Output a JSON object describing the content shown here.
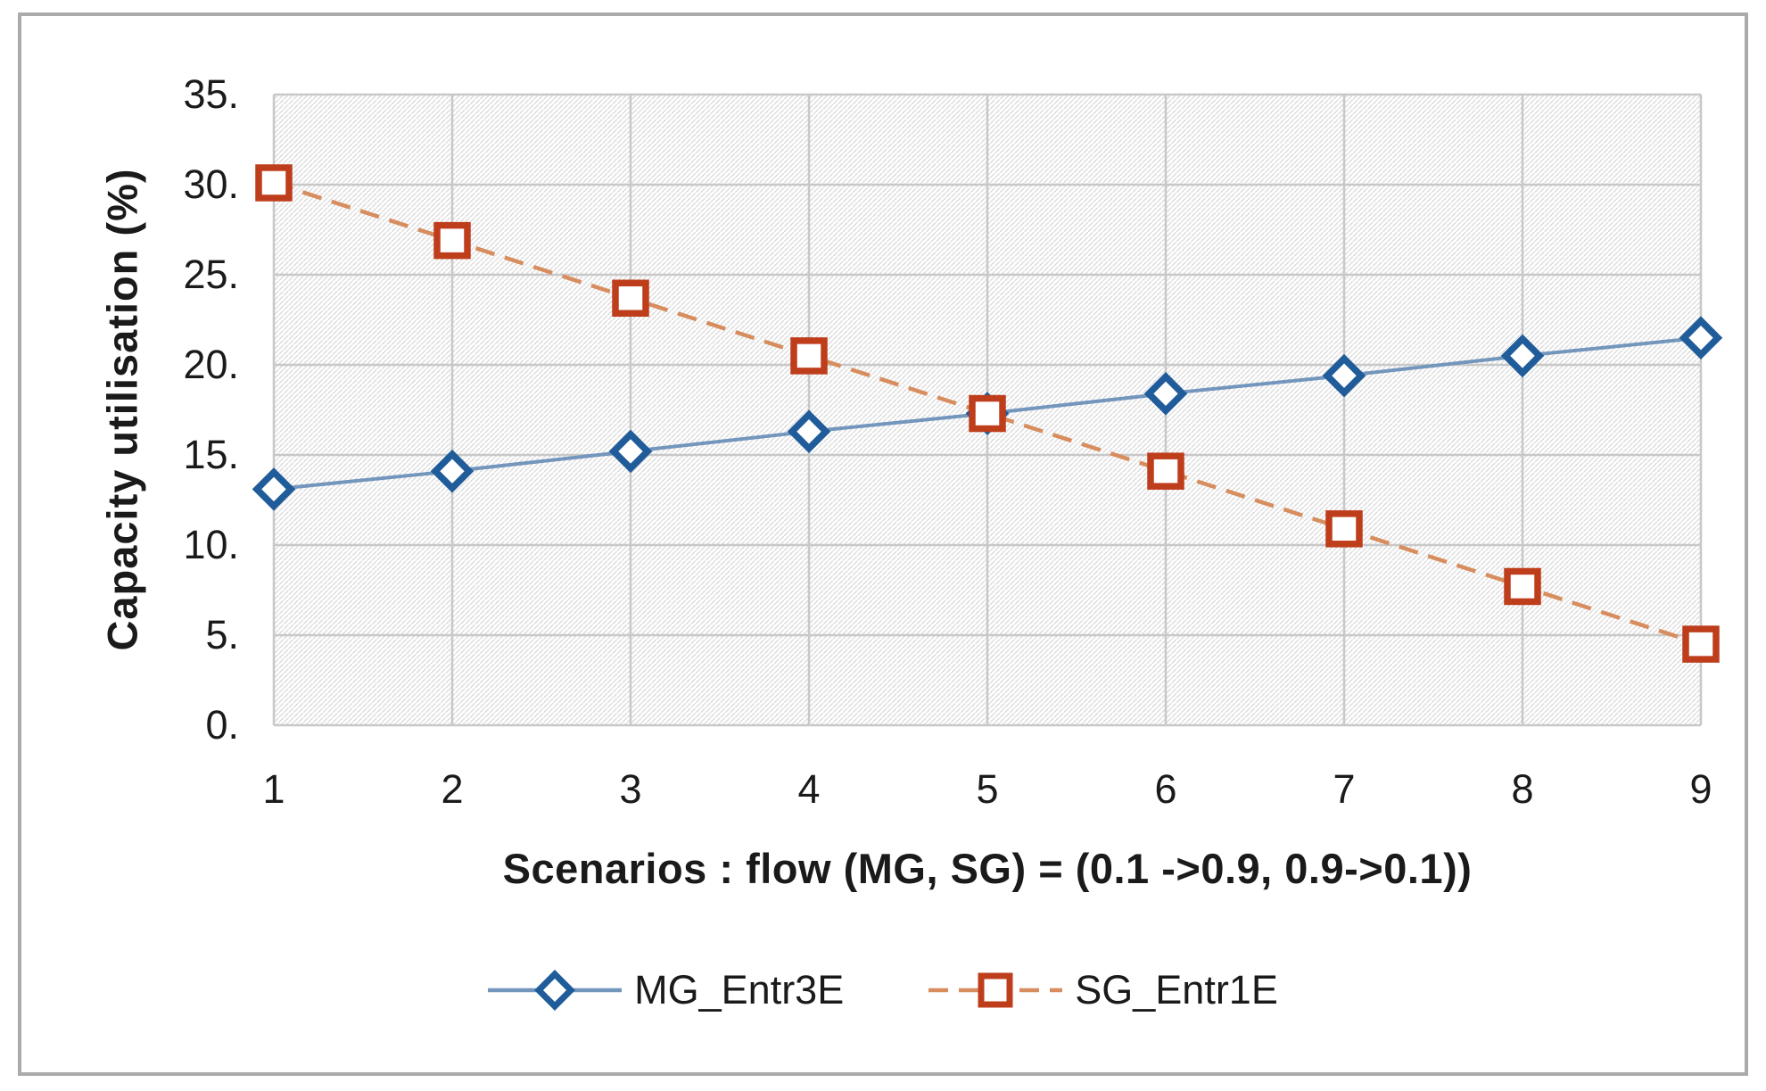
{
  "chart_data": {
    "type": "line",
    "title": "",
    "xlabel": "Scenarios : flow (MG, SG) = (0.1 ->0.9, 0.9->0.1))",
    "ylabel": "Capacity utilisation (%)",
    "x": [
      1,
      2,
      3,
      4,
      5,
      6,
      7,
      8,
      9
    ],
    "xtick_labels": [
      "1",
      "2",
      "3",
      "4",
      "5",
      "6",
      "7",
      "8",
      "9"
    ],
    "ylim": [
      0,
      35
    ],
    "ytick_step": 5,
    "ytick_labels": [
      "0.",
      "5.",
      "10.",
      "15.",
      "20.",
      "25.",
      "30.",
      "35."
    ],
    "grid": true,
    "plot_background": "diagonal-hatch",
    "legend_position": "bottom",
    "series": [
      {
        "name": "MG_Entr3E",
        "marker": "diamond",
        "marker_color": "#1f5c99",
        "line_color": "#7396bc",
        "line_style": "solid",
        "values": [
          13.1,
          14.1,
          15.2,
          16.3,
          17.3,
          18.4,
          19.4,
          20.5,
          21.5
        ]
      },
      {
        "name": "SG_Entr1E",
        "marker": "square",
        "marker_color": "#be3d1b",
        "line_color": "#d78d5e",
        "line_style": "dashed",
        "values": [
          30.1,
          26.9,
          23.7,
          20.5,
          17.3,
          14.1,
          10.9,
          7.7,
          4.5
        ]
      }
    ]
  },
  "colors": {
    "gridline": "#c8c8c8",
    "hatch": "#dcdcdc",
    "frame_border": "#ababab",
    "marker_fill": "#ffffff",
    "text": "#1a1a1a"
  }
}
